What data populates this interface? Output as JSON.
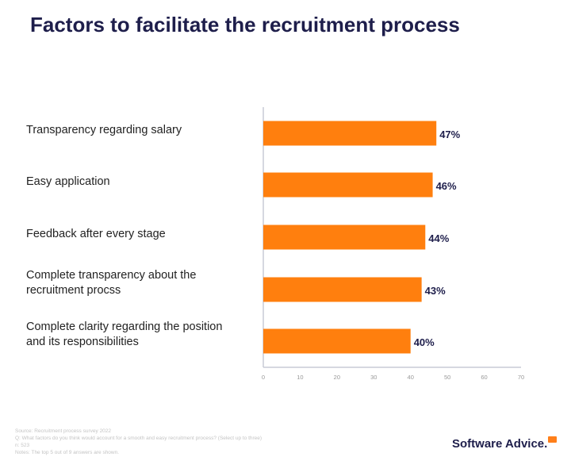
{
  "chart_data": {
    "type": "bar",
    "orientation": "horizontal",
    "title": "Factors to facilitate the recruitment process",
    "categories": [
      "Transparency regarding salary",
      "Easy application",
      "Feedback after every stage",
      "Complete transparency about the recruitment procss",
      "Complete clarity regarding the position and its responsibilities"
    ],
    "values": [
      47,
      46,
      44,
      43,
      40
    ],
    "data_labels": [
      "47%",
      "46%",
      "44%",
      "43%",
      "40%"
    ],
    "xlim": [
      0,
      70
    ],
    "xticks": [
      "0",
      "10",
      "20",
      "30",
      "40",
      "50",
      "60",
      "70"
    ],
    "grid": false,
    "bar_color": "#ff7f0e",
    "label_color": "#1e1e4b"
  },
  "footer": {
    "lines": [
      "Source: Recruitment process survey 2022",
      "Q: What factors do you think would account for a smooth and easy recruitment process? (Select up to three)",
      "n: 523",
      "Notes: The top 5 out of 9 answers are shown."
    ]
  },
  "logo": {
    "text": "Software Advice.",
    "accent": "#ff7f1a"
  }
}
